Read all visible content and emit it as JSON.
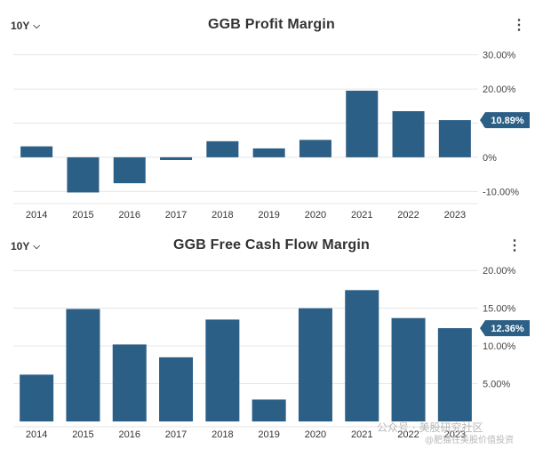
{
  "colors": {
    "bar": "#2c5f86",
    "grid": "#e6e6e6",
    "callout": "#2c5f86"
  },
  "watermark": {
    "line1": "公众号 · 美股研究社区",
    "line2": "@肥猫在美股价值投资"
  },
  "chart_data": [
    {
      "type": "bar",
      "title": "GGB Profit Margin",
      "period": "10Y",
      "categories": [
        "2014",
        "2015",
        "2016",
        "2017",
        "2018",
        "2019",
        "2020",
        "2021",
        "2022",
        "2023"
      ],
      "values": [
        3.2,
        -10.3,
        -7.6,
        -0.8,
        4.7,
        2.6,
        5.1,
        19.5,
        13.5,
        10.89
      ],
      "ylim": [
        -12,
        32
      ],
      "yticks": [
        -10,
        0,
        10,
        20,
        30
      ],
      "ytick_labels": [
        "-10.00%",
        "0%",
        "10.00%",
        "20.00%",
        "30.00%"
      ],
      "grid": true,
      "callout": "10.89%"
    },
    {
      "type": "bar",
      "title": "GGB Free Cash Flow Margin",
      "period": "10Y",
      "categories": [
        "2014",
        "2015",
        "2016",
        "2017",
        "2018",
        "2019",
        "2020",
        "2021",
        "2022",
        "2023"
      ],
      "values": [
        6.2,
        14.9,
        10.2,
        8.5,
        13.5,
        2.9,
        15.0,
        17.4,
        13.7,
        12.36
      ],
      "ylim": [
        0,
        20.5
      ],
      "yticks": [
        5,
        10,
        15,
        20
      ],
      "ytick_labels": [
        "5.00%",
        "10.00%",
        "15.00%",
        "20.00%"
      ],
      "grid": true,
      "callout": "12.36%"
    }
  ]
}
